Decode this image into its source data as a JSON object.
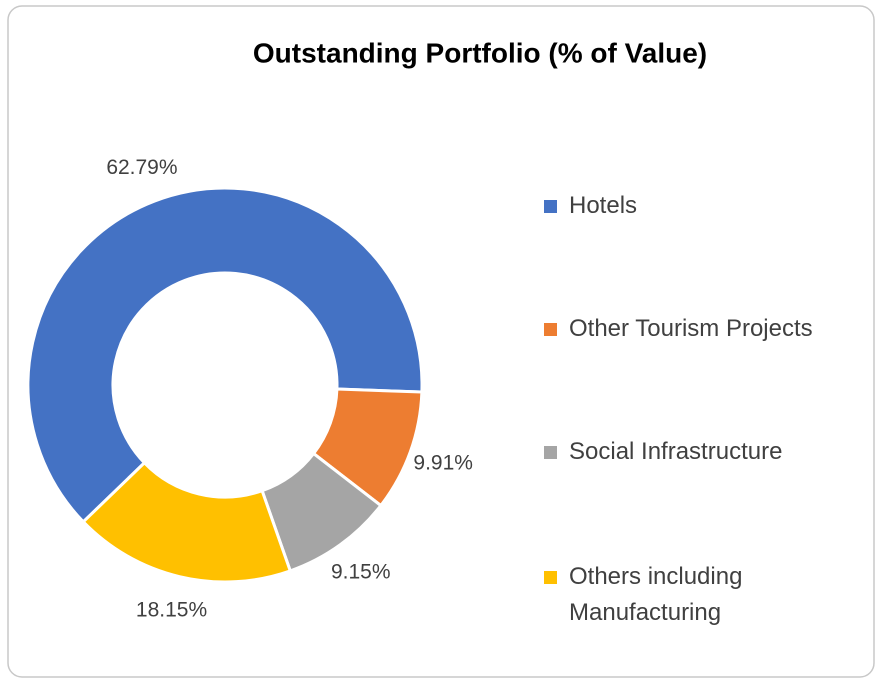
{
  "chart_data": {
    "type": "pie",
    "donut": true,
    "title": "Outstanding Portfolio (% of Value)",
    "categories": [
      "Hotels",
      "Other Tourism Projects",
      "Social Infrastructure",
      "Others including Manufacturing"
    ],
    "values": [
      62.79,
      9.91,
      9.15,
      18.15
    ],
    "value_labels": [
      "62.79%",
      "9.91%",
      "9.15%",
      "18.15%"
    ],
    "colors": [
      "#4472c4",
      "#ed7d31",
      "#a5a5a5",
      "#ffc000"
    ],
    "legend": "right"
  }
}
